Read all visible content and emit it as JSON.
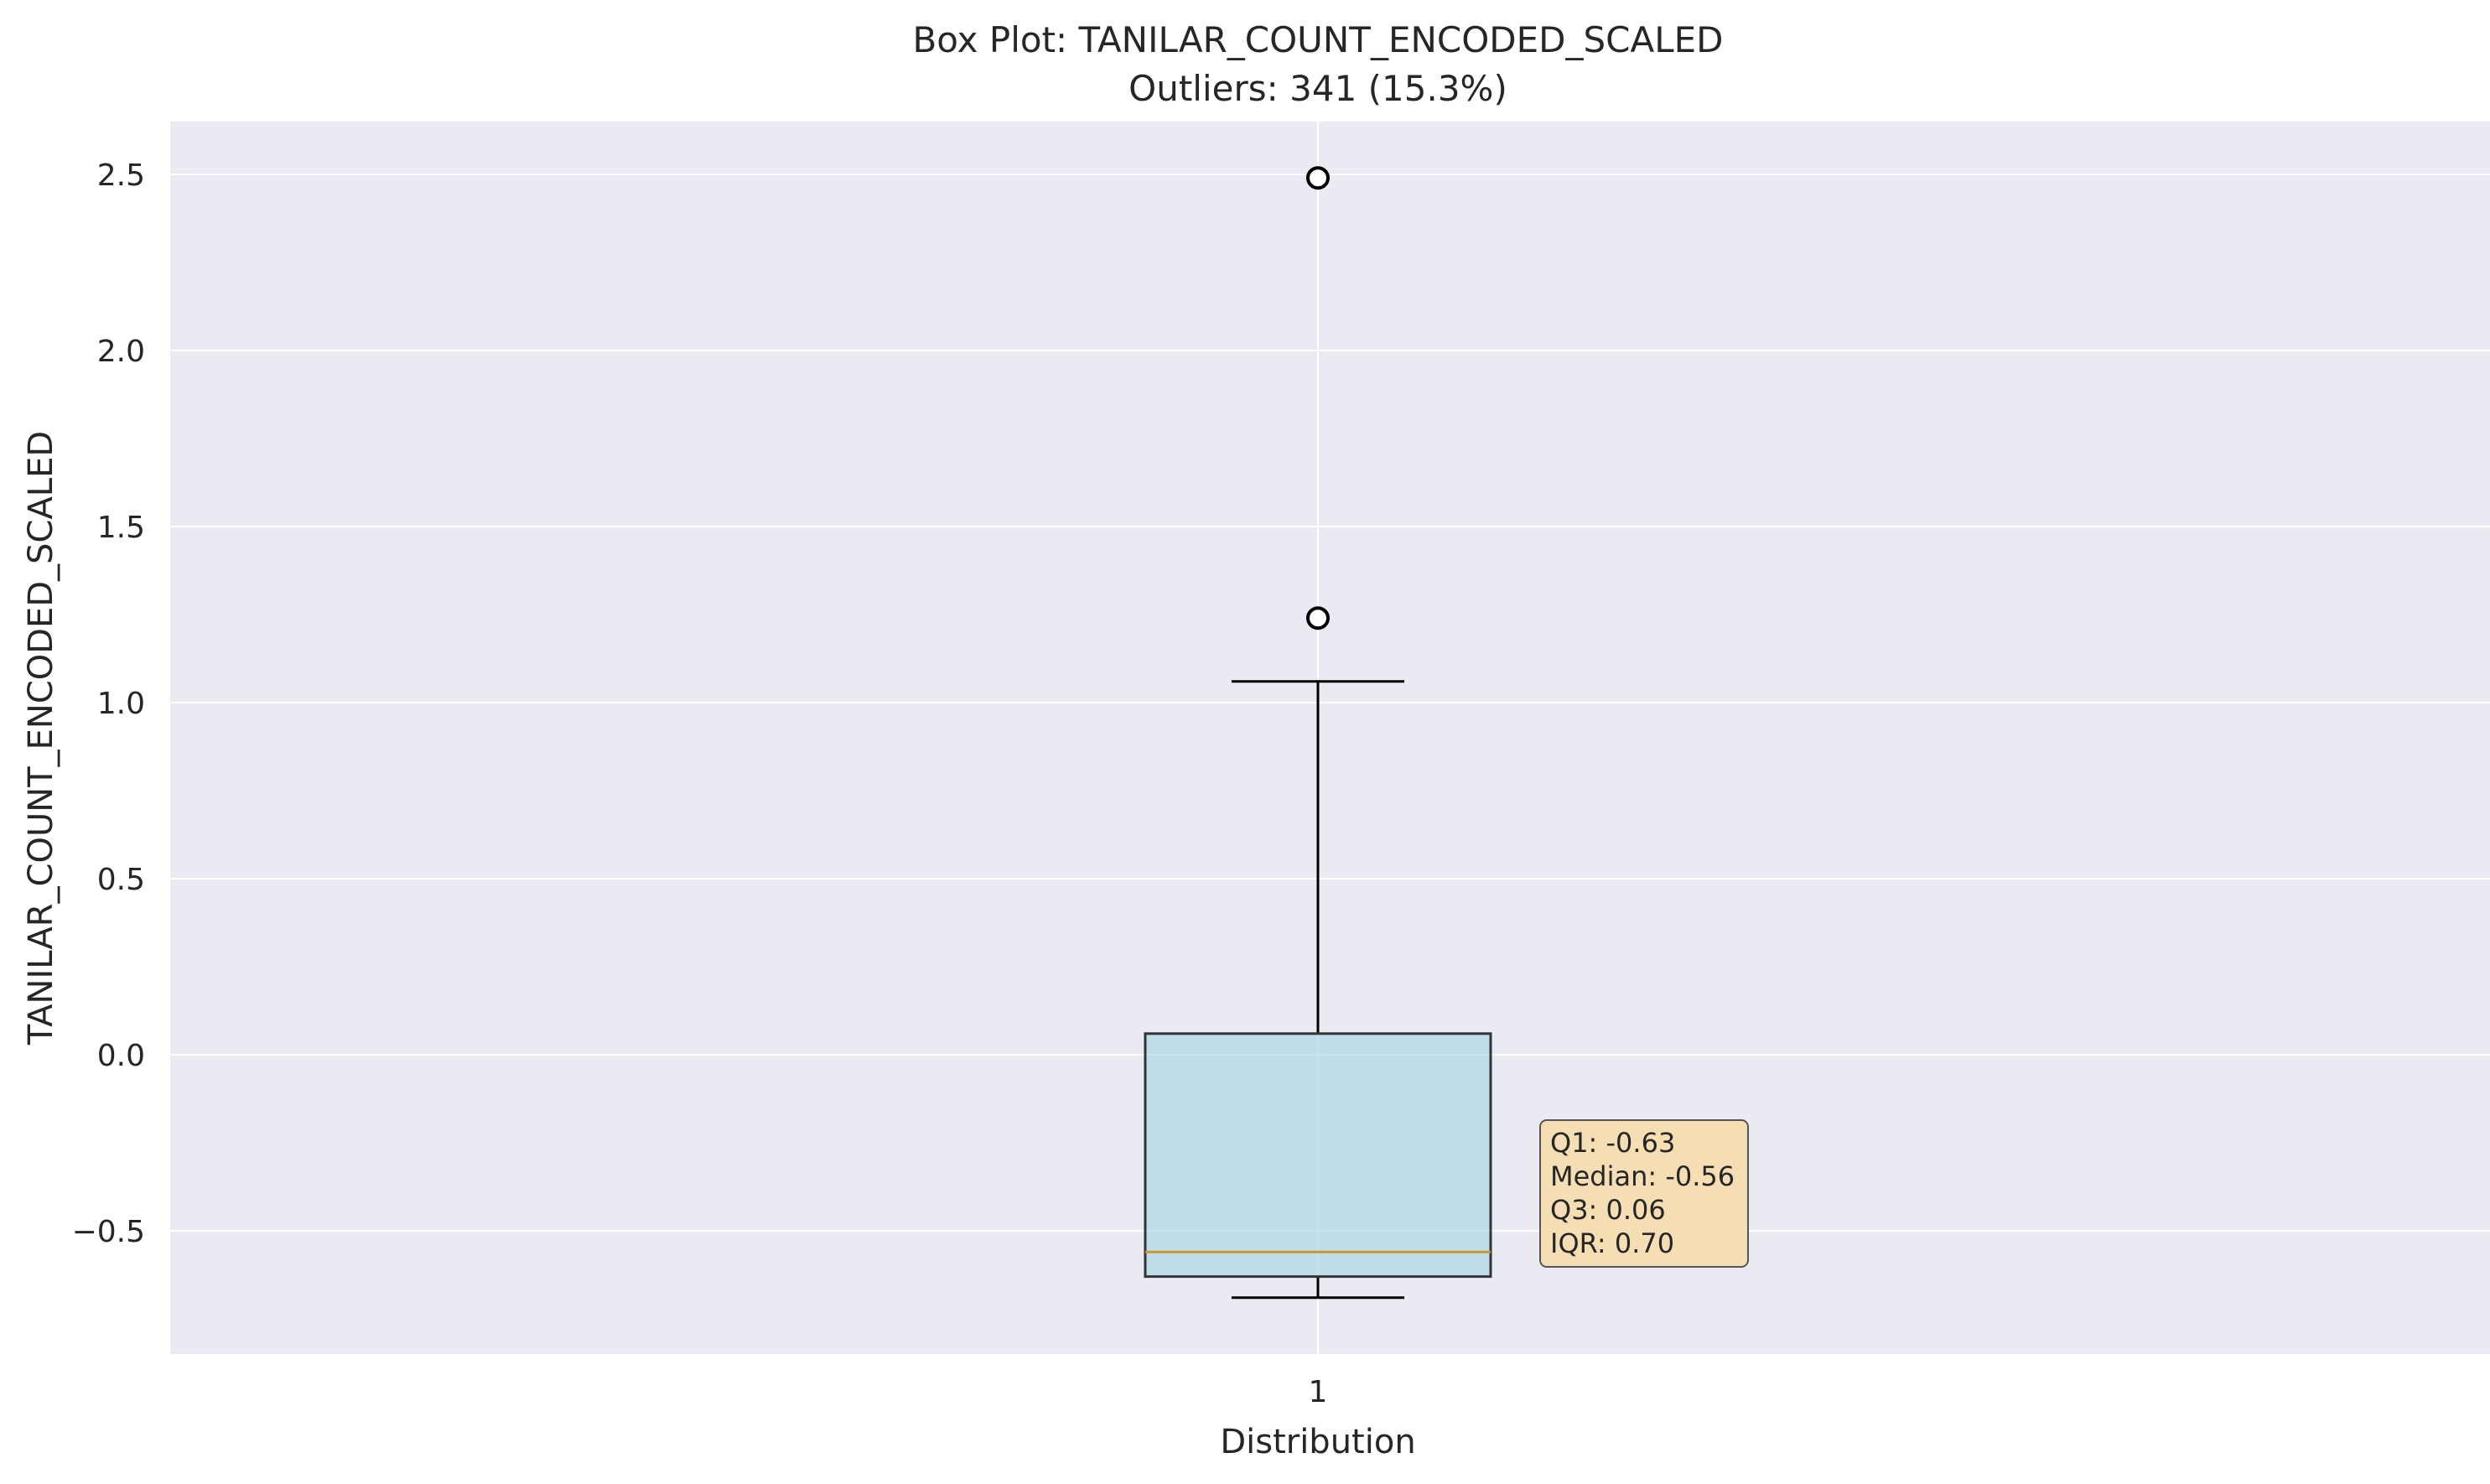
{
  "chart_data": {
    "type": "box",
    "title": "Box Plot: TANILAR_COUNT_ENCODED_SCALED",
    "subtitle": "Outliers: 341 (15.3%)",
    "xlabel": "Distribution",
    "ylabel": "TANILAR_COUNT_ENCODED_SCALED",
    "categories": [
      "1"
    ],
    "ylim": [
      -0.85,
      2.65
    ],
    "yticks": [
      -0.5,
      0.0,
      0.5,
      1.0,
      1.5,
      2.0,
      2.5
    ],
    "ytick_labels": [
      "−0.5",
      "0.0",
      "0.5",
      "1.0",
      "1.5",
      "2.0",
      "2.5"
    ],
    "grid": true,
    "box": {
      "whisker_low": -0.69,
      "q1": -0.63,
      "median": -0.56,
      "q3": 0.06,
      "whisker_high": 1.06,
      "outliers": [
        1.24,
        2.49
      ]
    },
    "annotation": {
      "q1": "Q1: -0.63",
      "median": "Median: -0.56",
      "q3": "Q3: 0.06",
      "iqr": "IQR: 0.70"
    },
    "colors": {
      "plot_background": "#eaeaf2",
      "grid": "#ffffff",
      "box_fill": "#add8e6",
      "box_edge": "#333333",
      "median_line": "#c8962e",
      "whisker": "#000000",
      "annotation_fill": "#f5deb3",
      "annotation_edge": "#555555"
    }
  }
}
